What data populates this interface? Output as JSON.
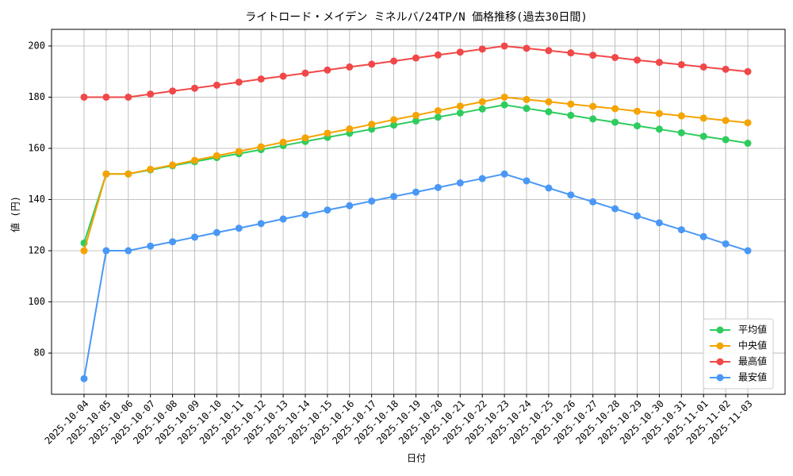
{
  "chart_data": {
    "type": "line",
    "title": "ライトロード・メイデン ミネルバ/24TP/N 価格推移(過去30日間)",
    "x_label": "日付",
    "y_label": "値 (円)",
    "categories": [
      "2025-10-04",
      "2025-10-05",
      "2025-10-06",
      "2025-10-07",
      "2025-10-08",
      "2025-10-09",
      "2025-10-10",
      "2025-10-11",
      "2025-10-12",
      "2025-10-13",
      "2025-10-14",
      "2025-10-15",
      "2025-10-16",
      "2025-10-17",
      "2025-10-18",
      "2025-10-19",
      "2025-10-20",
      "2025-10-21",
      "2025-10-22",
      "2025-10-23",
      "2025-10-24",
      "2025-10-25",
      "2025-10-26",
      "2025-10-27",
      "2025-10-28",
      "2025-10-29",
      "2025-10-30",
      "2025-10-31",
      "2025-11-01",
      "2025-11-02",
      "2025-11-03"
    ],
    "series": [
      {
        "name": "平均値",
        "color": "#2ecc5e",
        "values": [
          123,
          150,
          150,
          151.6,
          153.2,
          154.8,
          156.4,
          157.9,
          159.5,
          161.1,
          162.7,
          164.3,
          165.9,
          167.5,
          169.1,
          170.7,
          172.2,
          173.8,
          175.4,
          177,
          175.6,
          174.3,
          172.9,
          171.5,
          170.2,
          168.8,
          167.5,
          166.1,
          164.7,
          163.4,
          162
        ]
      },
      {
        "name": "中央値",
        "color": "#f5a300",
        "values": [
          120,
          150,
          150,
          151.8,
          153.5,
          155.3,
          157.1,
          158.8,
          160.6,
          162.4,
          164.1,
          165.9,
          167.6,
          169.4,
          171.2,
          172.9,
          174.7,
          176.5,
          178.2,
          180,
          179.1,
          178.2,
          177.3,
          176.4,
          175.5,
          174.5,
          173.6,
          172.7,
          171.8,
          170.9,
          170
        ]
      },
      {
        "name": "最高値",
        "color": "#f04848",
        "values": [
          180,
          180,
          180,
          181.2,
          182.4,
          183.5,
          184.7,
          185.9,
          187.1,
          188.2,
          189.4,
          190.6,
          191.8,
          192.9,
          194.1,
          195.3,
          196.5,
          197.6,
          198.8,
          200,
          199.1,
          198.2,
          197.3,
          196.4,
          195.5,
          194.5,
          193.6,
          192.7,
          191.8,
          190.9,
          190
        ]
      },
      {
        "name": "最安値",
        "color": "#4a98f5",
        "values": [
          70,
          120,
          120,
          121.8,
          123.5,
          125.3,
          127.1,
          128.8,
          130.6,
          132.4,
          134.1,
          135.9,
          137.6,
          139.4,
          141.2,
          142.9,
          144.7,
          146.5,
          148.2,
          150,
          147.3,
          144.5,
          141.8,
          139.1,
          136.4,
          133.6,
          130.9,
          128.2,
          125.5,
          122.7,
          120
        ]
      }
    ],
    "ylim": [
      63.9,
      206.5
    ],
    "yticks": [
      80,
      100,
      120,
      140,
      160,
      180,
      200
    ],
    "grid": true,
    "legend": "lower right"
  }
}
